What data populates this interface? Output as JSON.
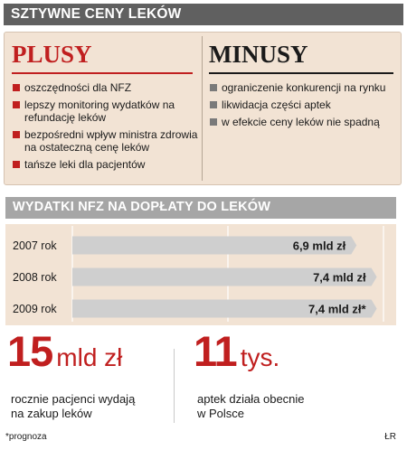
{
  "title": "SZTYWNE CENY LEKÓW",
  "plusy": {
    "heading": "PLUSY",
    "items": [
      "oszczędności dla NFZ",
      "lepszy monitoring wydatków na refundację leków",
      "bezpośredni wpływ ministra zdrowia na ostateczną cenę leków",
      "tańsze leki dla pacjentów"
    ]
  },
  "minusy": {
    "heading": "MINUSY",
    "items": [
      "ograniczenie konkurencji na rynku",
      "likwidacja części aptek",
      "w efekcie ceny leków nie spadną"
    ]
  },
  "chart_title": "WYDATKI NFZ NA DOPŁATY DO LEKÓW",
  "chart_data": {
    "type": "bar",
    "orientation": "horizontal",
    "title": "WYDATKI NFZ NA DOPŁATY DO LEKÓW",
    "categories": [
      "2007 rok",
      "2008 rok",
      "2009 rok"
    ],
    "values": [
      6.9,
      7.4,
      7.4
    ],
    "value_labels": [
      "6,9 mld zł",
      "7,4 mld zł",
      "7,4 mld zł*"
    ],
    "unit": "mld zł",
    "xlim": [
      0,
      7.7
    ],
    "grid": true,
    "legend": "none"
  },
  "stats": [
    {
      "number": "15",
      "unit": "mld zł",
      "description": [
        "rocznie pacjenci wydają",
        "na zakup leków"
      ]
    },
    {
      "number": "11",
      "unit": "tys.",
      "description": [
        "aptek działa obecnie",
        "w Polsce"
      ]
    }
  ],
  "footnote": "*prognoza",
  "author": "ŁR",
  "colors": {
    "accent_red": "#c01f1f",
    "title_bar": "#606060",
    "subtitle_bar": "#a6a6a6",
    "panel_background": "#f2e3d4",
    "bar_fill": "#cfcfcf"
  }
}
